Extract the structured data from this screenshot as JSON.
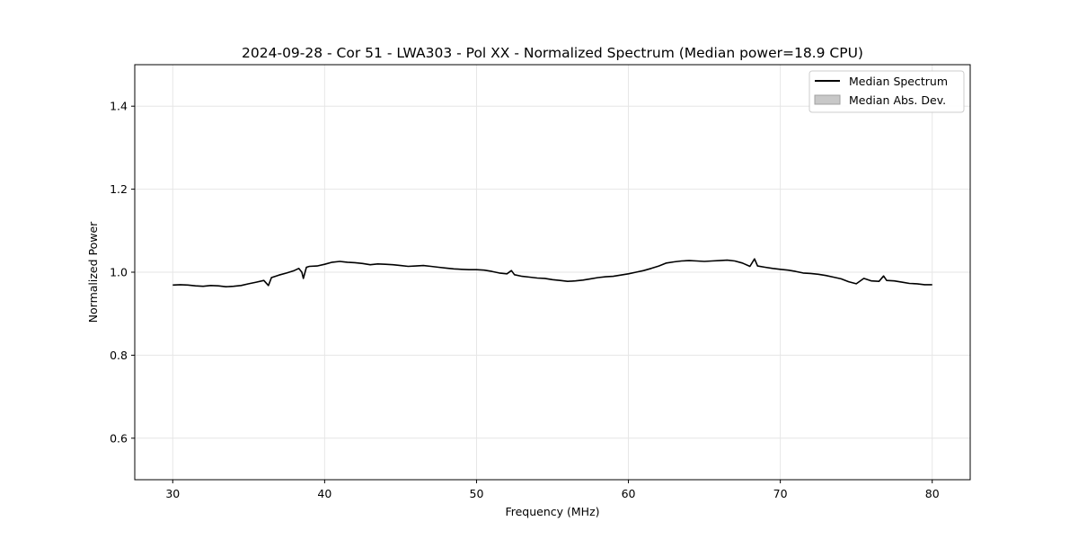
{
  "chart_data": {
    "type": "line",
    "title": "2024-09-28 - Cor 51 - LWA303 - Pol XX - Normalized Spectrum (Median power=18.9 CPU)",
    "xlabel": "Frequency (MHz)",
    "ylabel": "Normalized Power",
    "xlim": [
      27.5,
      82.5
    ],
    "ylim": [
      0.5,
      1.5
    ],
    "xticks": [
      30,
      40,
      50,
      60,
      70,
      80
    ],
    "yticks": [
      0.6,
      0.8,
      1.0,
      1.2,
      1.4
    ],
    "xtick_labels": [
      "30",
      "40",
      "50",
      "60",
      "70",
      "80"
    ],
    "ytick_labels": [
      "0.6",
      "0.8",
      "1.0",
      "1.2",
      "1.4"
    ],
    "grid": true,
    "legend": {
      "placement": "top-right",
      "entries": [
        "Median Spectrum",
        "Median Abs. Dev."
      ]
    },
    "colors": {
      "line": "#000000",
      "mad_fill": "#c8c8c8",
      "mad_edge": "#a0a0a0",
      "grid": "#e6e6e6"
    },
    "series": [
      {
        "name": "Median Spectrum",
        "x": [
          30,
          30.5,
          31,
          31.5,
          32,
          32.5,
          33,
          33.5,
          34,
          34.5,
          35,
          35.5,
          36,
          36.3,
          36.5,
          37,
          37.5,
          38,
          38.3,
          38.5,
          38.6,
          38.8,
          39,
          39.5,
          40,
          40.5,
          41,
          41.5,
          42,
          42.5,
          43,
          43.5,
          44,
          44.5,
          45,
          45.5,
          46,
          46.5,
          47,
          47.5,
          48,
          48.5,
          49,
          49.5,
          50,
          50.5,
          51,
          51.5,
          52,
          52.3,
          52.5,
          53,
          53.5,
          54,
          54.5,
          55,
          55.5,
          56,
          56.5,
          57,
          57.5,
          58,
          58.5,
          59,
          59.5,
          60,
          60.5,
          61,
          61.5,
          62,
          62.5,
          63,
          63.5,
          64,
          64.5,
          65,
          65.5,
          66,
          66.5,
          67,
          67.5,
          68,
          68.3,
          68.5,
          69,
          69.5,
          70,
          70.5,
          71,
          71.5,
          72,
          72.5,
          73,
          73.5,
          74,
          74.5,
          75,
          75.5,
          76,
          76.5,
          76.8,
          77,
          77.5,
          78,
          78.5,
          79,
          79.5,
          80
        ],
        "values": [
          0.969,
          0.97,
          0.969,
          0.967,
          0.966,
          0.968,
          0.967,
          0.965,
          0.966,
          0.968,
          0.972,
          0.976,
          0.98,
          0.968,
          0.987,
          0.993,
          0.998,
          1.004,
          1.009,
          1.0,
          0.985,
          1.012,
          1.014,
          1.015,
          1.019,
          1.024,
          1.026,
          1.024,
          1.023,
          1.021,
          1.018,
          1.02,
          1.019,
          1.018,
          1.016,
          1.014,
          1.015,
          1.016,
          1.014,
          1.012,
          1.01,
          1.008,
          1.007,
          1.006,
          1.006,
          1.005,
          1.002,
          0.998,
          0.996,
          1.004,
          0.994,
          0.99,
          0.988,
          0.986,
          0.985,
          0.982,
          0.98,
          0.978,
          0.979,
          0.981,
          0.984,
          0.987,
          0.989,
          0.99,
          0.993,
          0.996,
          1.0,
          1.004,
          1.009,
          1.015,
          1.022,
          1.025,
          1.027,
          1.028,
          1.027,
          1.026,
          1.027,
          1.028,
          1.029,
          1.027,
          1.022,
          1.014,
          1.032,
          1.015,
          1.012,
          1.009,
          1.007,
          1.005,
          1.002,
          0.998,
          0.997,
          0.995,
          0.992,
          0.988,
          0.984,
          0.977,
          0.972,
          0.985,
          0.979,
          0.978,
          0.991,
          0.98,
          0.979,
          0.976,
          0.973,
          0.972,
          0.97,
          0.97
        ]
      }
    ]
  }
}
